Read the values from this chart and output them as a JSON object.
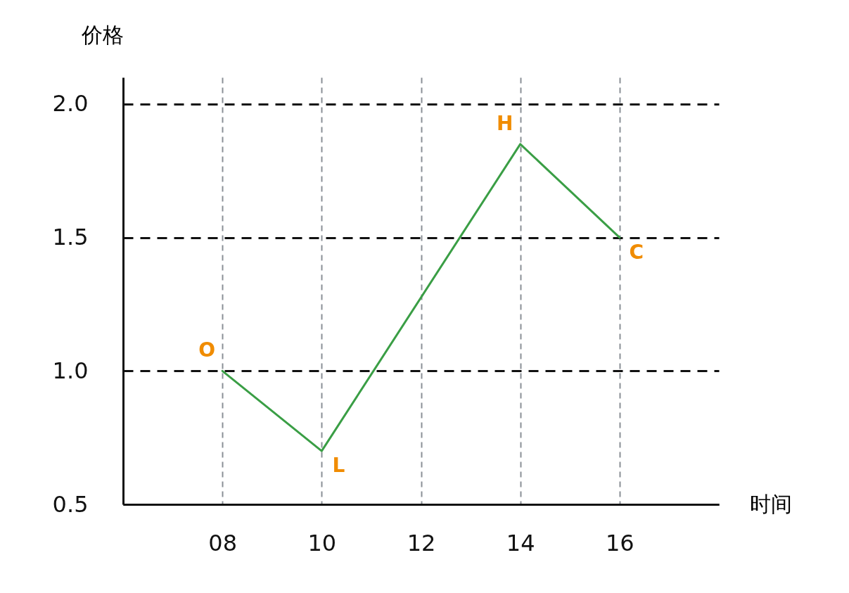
{
  "chart_data": {
    "type": "line",
    "xlabel": "时间",
    "ylabel": "价格",
    "x": [
      8,
      10,
      14,
      16
    ],
    "series": [
      {
        "color": "#3a9e45",
        "values": [
          1.0,
          0.7,
          1.85,
          1.5
        ]
      }
    ],
    "xlim": [
      6,
      18
    ],
    "xticks": [
      {
        "value": 8,
        "label": "08"
      },
      10,
      12,
      14,
      16
    ],
    "ylim": [
      0.5,
      2.1
    ],
    "yticks": [
      0.5,
      {
        "value": 1,
        "label": "1.0"
      },
      1.5,
      {
        "value": 2,
        "label": "2.0"
      }
    ],
    "grid": true,
    "annotations": [
      {
        "text": "O",
        "x": 8,
        "y": 1.0
      },
      {
        "text": "L",
        "x": 10,
        "y": 0.7
      },
      {
        "text": "H",
        "x": 14,
        "y": 1.85
      },
      {
        "text": "C",
        "x": 16,
        "y": 1.5
      }
    ]
  }
}
